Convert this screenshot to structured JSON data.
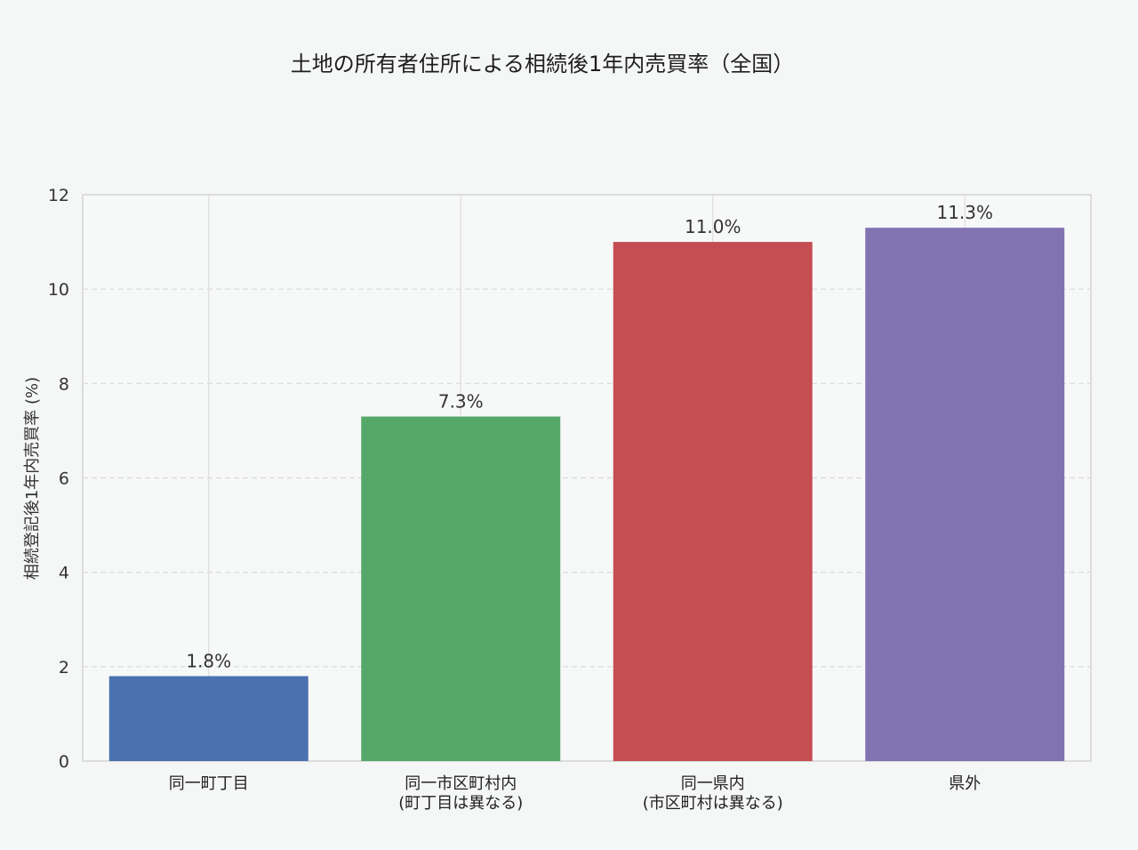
{
  "chart_data": {
    "type": "bar",
    "title": "土地の所有者住所による相続後1年内売買率（全国）",
    "xlabel": "",
    "ylabel": "相続登記後1年内売買率 (%)",
    "ylim": [
      0,
      12
    ],
    "yticks": [
      0,
      2,
      4,
      6,
      8,
      10,
      12
    ],
    "categories": [
      [
        "同一町丁目"
      ],
      [
        "同一市区町村内",
        "(町丁目は異なる)"
      ],
      [
        "同一県内",
        "(市区町村は異なる)"
      ],
      [
        "県外"
      ]
    ],
    "values": [
      1.8,
      7.3,
      11.0,
      11.3
    ],
    "value_labels": [
      "1.8%",
      "7.3%",
      "11.0%",
      "11.3%"
    ],
    "colors": [
      "#4a72b0",
      "#55a868",
      "#c44e52",
      "#8172b2"
    ],
    "grid": true,
    "legend": "none"
  }
}
